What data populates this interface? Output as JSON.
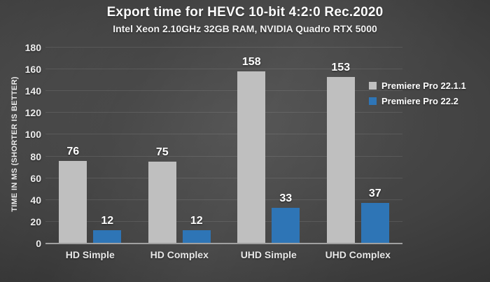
{
  "chart_data": {
    "type": "bar",
    "title": "Export time for HEVC 10-bit 4:2:0 Rec.2020",
    "subtitle": "Intel Xeon 2.10GHz 32GB RAM, NVIDIA Quadro RTX 5000",
    "categories": [
      "HD Simple",
      "HD Complex",
      "UHD Simple",
      "UHD Complex"
    ],
    "series": [
      {
        "name": "Premiere Pro 22.1.1",
        "color": "#bfbfbf",
        "values": [
          76,
          75,
          158,
          153
        ]
      },
      {
        "name": "Premiere Pro 22.2",
        "color": "#2e75b6",
        "values": [
          12,
          12,
          33,
          37
        ]
      }
    ],
    "xlabel": "",
    "ylabel": "TIME IN MS (SHORTER IS BETTER)",
    "ylim": [
      0,
      180
    ],
    "ytick_step": 20,
    "grid": true,
    "legend_position": "right",
    "value_labels": true
  },
  "colors": {
    "background_center": "#4f4f4f",
    "background_edge": "#1d1d1d",
    "gridline": "rgba(255,255,255,0.10)",
    "axis_line": "#a0a0a0",
    "text": "#ffffff"
  }
}
